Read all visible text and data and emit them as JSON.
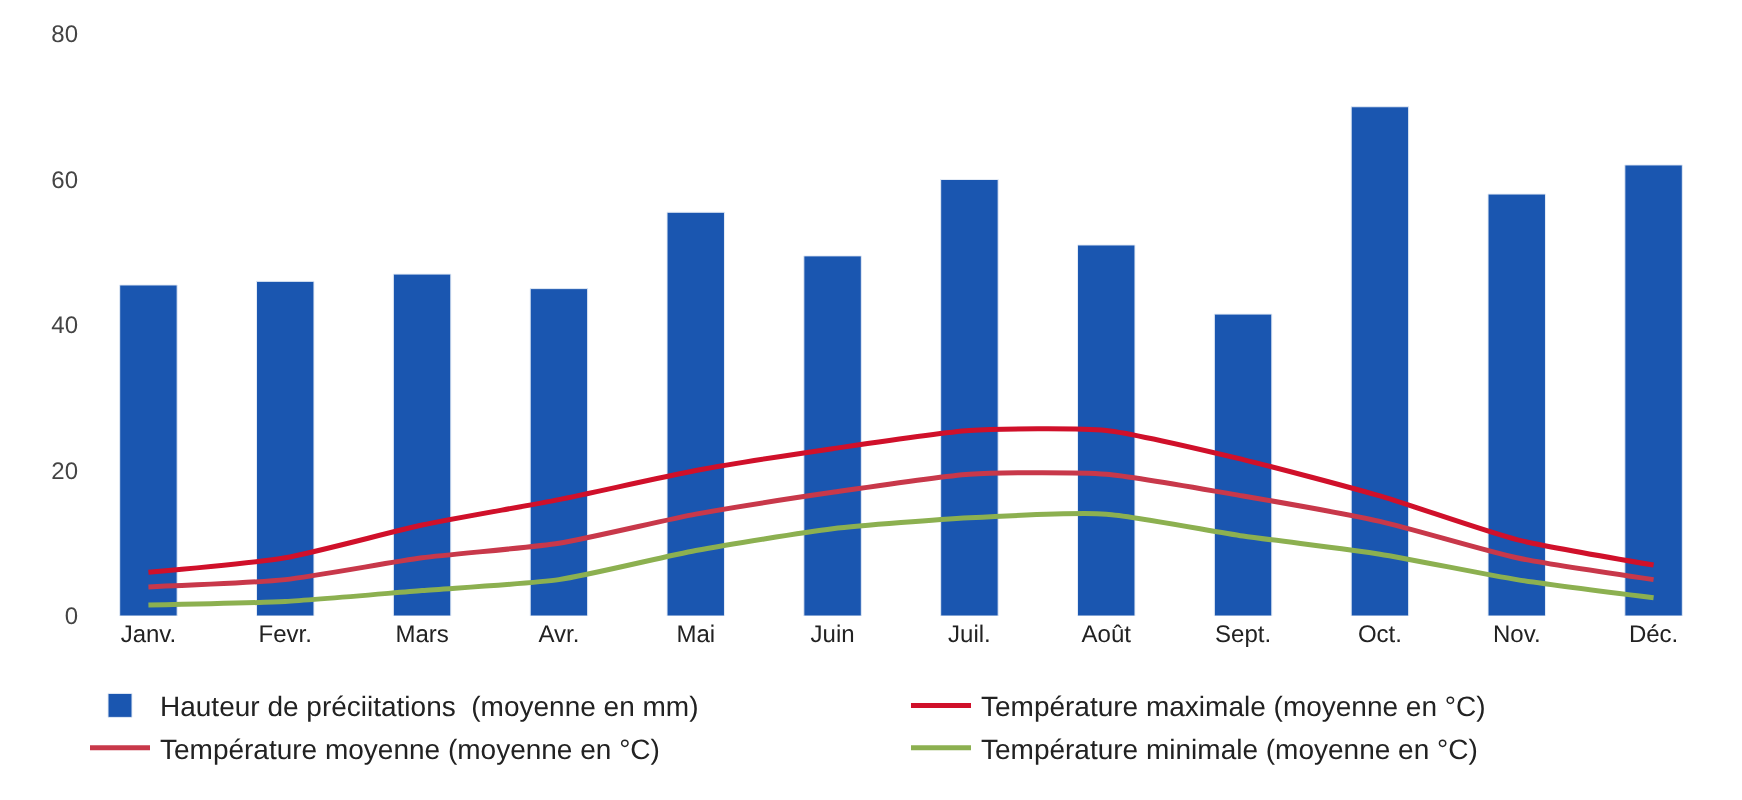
{
  "chart_data": {
    "type": "bar",
    "categories": [
      "Janv.",
      "Fevr.",
      "Mars",
      "Avr.",
      "Mai",
      "Juin",
      "Juil.",
      "Août",
      "Sept.",
      "Oct.",
      "Nov.",
      "Déc."
    ],
    "series": [
      {
        "name": "Hauteur de préciitations  (moyenne en mm)",
        "color": "#1a56b0",
        "values": [
          45.5,
          46,
          47,
          45,
          55.5,
          49.5,
          60,
          51,
          41.5,
          70,
          58,
          62
        ]
      },
      {
        "name": "Température maximale (moyenne en °C)",
        "type": "line",
        "color": "#d0102a",
        "values": [
          6,
          8,
          12.5,
          16,
          20,
          23,
          25.5,
          25.5,
          21.5,
          16.5,
          10.5,
          7
        ]
      },
      {
        "name": "Température moyenne (moyenne en °C)",
        "type": "line",
        "color": "#c8384a",
        "values": [
          4,
          5,
          8,
          10,
          14,
          17,
          19.5,
          19.5,
          16.5,
          13,
          8,
          5
        ]
      },
      {
        "name": "Température minimale (moyenne en °C)",
        "type": "line",
        "color": "#8cb050",
        "values": [
          1.5,
          2,
          3.5,
          5,
          9,
          12,
          13.5,
          14,
          11,
          8.5,
          5,
          2.5
        ]
      }
    ],
    "ylim": [
      0,
      80
    ],
    "yticks": [
      0,
      20,
      40,
      60,
      80
    ],
    "legend": "bottom",
    "marker": "none"
  }
}
